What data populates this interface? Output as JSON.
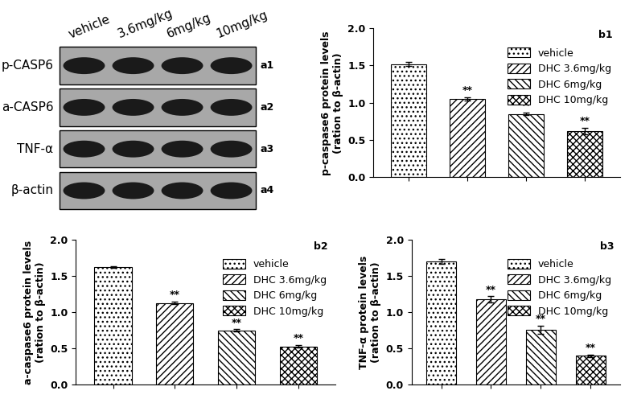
{
  "western_blot": {
    "lanes": [
      "vehicle",
      "3.6mg/kg",
      "6mg/kg",
      "10mg/kg"
    ],
    "rows": [
      {
        "label": "p-CASP6",
        "panel": "a1"
      },
      {
        "label": "a-CASP6",
        "panel": "a2"
      },
      {
        "label": "TNF-α",
        "panel": "a3"
      },
      {
        "label": "β-actin",
        "panel": "a4"
      }
    ]
  },
  "chart_data": [
    {
      "type": "bar",
      "title": "b1",
      "y_label": "p-caspase6 protein levels\n(ration to β-actin)",
      "categories": [
        null,
        null,
        null,
        null
      ],
      "tick_labels": "y",
      "legend": "upper right",
      "ylim": [
        0,
        2.0
      ],
      "yticks": [
        {
          "value": 0,
          "label": "0.0"
        },
        {
          "value": 0.5,
          "label": "0.5"
        },
        {
          "value": 1.0,
          "label": "1.0"
        },
        {
          "value": 1.5,
          "label": "1.5"
        },
        {
          "value": 2.0,
          "label": "2.0"
        }
      ],
      "series": [
        {
          "name": "vehicle",
          "color": "#ffffff",
          "values": [
            1.52,
            null,
            null,
            null
          ],
          "error": [
            0.03,
            null,
            null,
            null
          ]
        },
        {
          "name": "DHC 3.6mg/kg",
          "color": "#ffffff",
          "values": [
            null,
            1.05,
            null,
            null
          ],
          "error": [
            null,
            0.02,
            null,
            null
          ],
          "significance": "**"
        },
        {
          "name": "DHC 6mg/kg",
          "color": "#ffffff",
          "values": [
            null,
            null,
            0.85,
            null
          ],
          "error": [
            null,
            null,
            0.015,
            null
          ],
          "significance": "**"
        },
        {
          "name": "DHC 10mg/kg",
          "color": "#ffffff",
          "values": [
            null,
            null,
            null,
            0.62
          ],
          "error": [
            null,
            null,
            null,
            0.04
          ],
          "significance": "**"
        }
      ]
    },
    {
      "type": "bar",
      "title": "b2",
      "y_label": "a-caspase6 protein levels\n(ration to β-actin)",
      "categories": [
        null,
        null,
        null,
        null
      ],
      "tick_labels": "y",
      "legend": "upper right",
      "ylim": [
        0,
        2.0
      ],
      "yticks": [
        {
          "value": 0,
          "label": "0.0"
        },
        {
          "value": 0.5,
          "label": "0.5"
        },
        {
          "value": 1.0,
          "label": "1.0"
        },
        {
          "value": 1.5,
          "label": "1.5"
        },
        {
          "value": 2.0,
          "label": "2.0"
        }
      ],
      "series": [
        {
          "name": "vehicle",
          "color": "#ffffff",
          "values": [
            1.62,
            null,
            null,
            null
          ],
          "error": [
            0.01,
            null,
            null,
            null
          ]
        },
        {
          "name": "DHC 3.6mg/kg",
          "color": "#ffffff",
          "values": [
            null,
            1.13,
            null,
            null
          ],
          "error": [
            null,
            0.02,
            null,
            null
          ],
          "significance": "**"
        },
        {
          "name": "DHC 6mg/kg",
          "color": "#ffffff",
          "values": [
            null,
            null,
            0.75,
            null
          ],
          "error": [
            null,
            null,
            0.015,
            null
          ],
          "significance": "**"
        },
        {
          "name": "DHC 10mg/kg",
          "color": "#ffffff",
          "values": [
            null,
            null,
            null,
            0.53
          ],
          "error": [
            null,
            null,
            null,
            0.02
          ],
          "significance": "**"
        }
      ]
    },
    {
      "type": "bar",
      "title": "b3",
      "y_label": "TNF-α protein levels\n(ration to β-actin)",
      "categories": [
        null,
        null,
        null,
        null
      ],
      "tick_labels": "y",
      "legend": "upper right",
      "ylim": [
        0,
        2.0
      ],
      "yticks": [
        {
          "value": 0,
          "label": "0.0"
        },
        {
          "value": 0.5,
          "label": "0.5"
        },
        {
          "value": 1.0,
          "label": "1.0"
        },
        {
          "value": 1.5,
          "label": "1.5"
        },
        {
          "value": 2.0,
          "label": "2.0"
        }
      ],
      "series": [
        {
          "name": "vehicle",
          "color": "#ffffff",
          "values": [
            1.7,
            null,
            null,
            null
          ],
          "error": [
            0.03,
            null,
            null,
            null
          ]
        },
        {
          "name": "DHC 3.6mg/kg",
          "color": "#ffffff",
          "values": [
            null,
            1.18,
            null,
            null
          ],
          "error": [
            null,
            0.04,
            null,
            null
          ],
          "significance": "**"
        },
        {
          "name": "DHC 6mg/kg",
          "color": "#ffffff",
          "values": [
            null,
            null,
            0.76,
            null
          ],
          "error": [
            null,
            null,
            0.06,
            null
          ],
          "significance": "**"
        },
        {
          "name": "DHC 10mg/kg",
          "color": "#ffffff",
          "values": [
            null,
            null,
            null,
            0.4
          ],
          "error": [
            null,
            null,
            null,
            0.02
          ],
          "significance": "**"
        }
      ]
    }
  ]
}
